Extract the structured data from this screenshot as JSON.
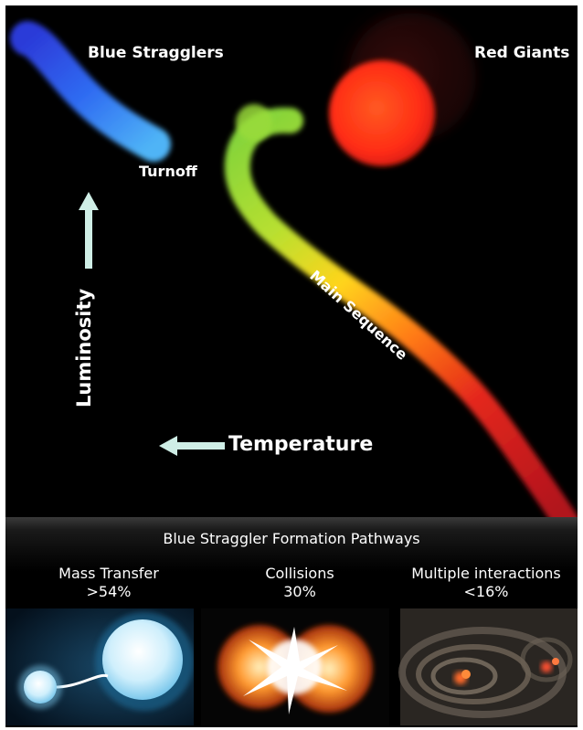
{
  "diagram": {
    "labels": {
      "blue_stragglers": "Blue Stragglers",
      "red_giants": "Red Giants",
      "turnoff": "Turnoff",
      "main_sequence": "Main Sequence",
      "luminosity": "Luminosity",
      "temperature": "Temperature"
    },
    "colors": {
      "background": "#000000",
      "blue_branch": "#3a6cff",
      "main_sequence_top": "#7fd03a",
      "main_sequence_mid": "#ffd21c",
      "main_sequence_bottom": "#c0141c",
      "red_giants": "#ff4a1c",
      "arrow": "#bfe8e0"
    }
  },
  "pathways": {
    "title": "Blue Straggler Formation Pathways",
    "items": [
      {
        "name": "Mass Transfer",
        "share": ">54%",
        "icon": "binary-mass-transfer-image"
      },
      {
        "name": "Collisions",
        "share": "30%",
        "icon": "stellar-collision-image"
      },
      {
        "name": "Multiple interactions",
        "share": "<16%",
        "icon": "multiple-interactions-image"
      }
    ]
  }
}
